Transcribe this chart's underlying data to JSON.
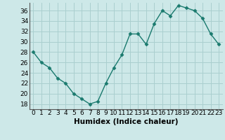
{
  "x": [
    0,
    1,
    2,
    3,
    4,
    5,
    6,
    7,
    8,
    9,
    10,
    11,
    12,
    13,
    14,
    15,
    16,
    17,
    18,
    19,
    20,
    21,
    22,
    23
  ],
  "y": [
    28,
    26,
    25,
    23,
    22,
    20,
    19,
    18,
    18.5,
    22,
    25,
    27.5,
    31.5,
    31.5,
    29.5,
    33.5,
    36,
    35,
    37,
    36.5,
    36,
    34.5,
    31.5,
    29.5
  ],
  "line_color": "#1a7a6e",
  "marker": "D",
  "marker_size": 2.5,
  "bg_color": "#cde8e8",
  "grid_color": "#aacfcf",
  "xlabel": "Humidex (Indice chaleur)",
  "xlim": [
    -0.5,
    23.5
  ],
  "ylim": [
    17,
    37.5
  ],
  "yticks": [
    18,
    20,
    22,
    24,
    26,
    28,
    30,
    32,
    34,
    36
  ],
  "xticks": [
    0,
    1,
    2,
    3,
    4,
    5,
    6,
    7,
    8,
    9,
    10,
    11,
    12,
    13,
    14,
    15,
    16,
    17,
    18,
    19,
    20,
    21,
    22,
    23
  ],
  "tick_label_fontsize": 6.5,
  "xlabel_fontsize": 7.5
}
